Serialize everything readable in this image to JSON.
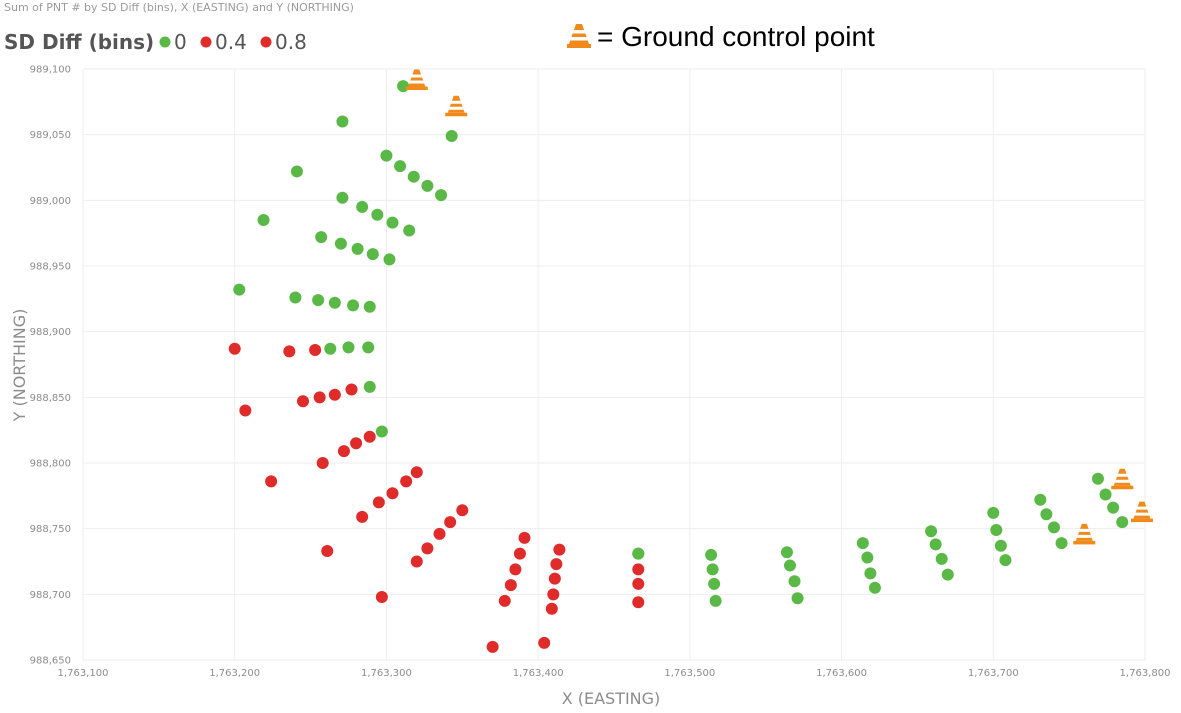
{
  "chart_data": {
    "type": "scatter",
    "title": "Sum of PNT # by SD Diff (bins), X (EASTING) and Y (NORTHING)",
    "xlabel": "X (EASTING)",
    "ylabel": "Y (NORTHING)",
    "xlim": [
      1763100,
      1763800
    ],
    "ylim": [
      988650,
      989100
    ],
    "xticks": [
      1763100,
      1763200,
      1763300,
      1763400,
      1763500,
      1763600,
      1763700,
      1763800
    ],
    "yticks": [
      988650,
      988700,
      988750,
      988800,
      988850,
      988900,
      988950,
      989000,
      989050,
      989100
    ],
    "xtick_labels": [
      "1,763,100",
      "1,763,200",
      "1,763,300",
      "1,763,400",
      "1,763,500",
      "1,763,600",
      "1,763,700",
      "1,763,800"
    ],
    "ytick_labels": [
      "988,650",
      "988,700",
      "988,750",
      "988,800",
      "988,850",
      "988,900",
      "988,950",
      "989,000",
      "989,050",
      "989,100"
    ],
    "grid": true,
    "legend": {
      "title": "SD Diff (bins)",
      "placement": "top-left",
      "entries": [
        {
          "label": "0",
          "color": "#5ab946"
        },
        {
          "label": "0.4",
          "color": "#e02b2b"
        },
        {
          "label": "0.8",
          "color": "#e02b2b"
        }
      ]
    },
    "annotation": "= Ground control point",
    "series": [
      {
        "name": "0",
        "color": "#5ab946",
        "points": [
          [
            1763311,
            989087
          ],
          [
            1763343,
            989049
          ],
          [
            1763271,
            989060
          ],
          [
            1763241,
            989022
          ],
          [
            1763300,
            989034
          ],
          [
            1763309,
            989026
          ],
          [
            1763318,
            989018
          ],
          [
            1763327,
            989011
          ],
          [
            1763336,
            989004
          ],
          [
            1763271,
            989002
          ],
          [
            1763284,
            988995
          ],
          [
            1763294,
            988989
          ],
          [
            1763304,
            988983
          ],
          [
            1763315,
            988977
          ],
          [
            1763219,
            988985
          ],
          [
            1763257,
            988972
          ],
          [
            1763270,
            988967
          ],
          [
            1763281,
            988963
          ],
          [
            1763291,
            988959
          ],
          [
            1763302,
            988955
          ],
          [
            1763203,
            988932
          ],
          [
            1763240,
            988926
          ],
          [
            1763255,
            988924
          ],
          [
            1763266,
            988922
          ],
          [
            1763278,
            988920
          ],
          [
            1763289,
            988919
          ],
          [
            1763263,
            988887
          ],
          [
            1763275,
            988888
          ],
          [
            1763288,
            988888
          ],
          [
            1763289,
            988858
          ],
          [
            1763297,
            988824
          ],
          [
            1763466,
            988731
          ],
          [
            1763466,
            988731
          ],
          [
            1763514,
            988730
          ],
          [
            1763515,
            988719
          ],
          [
            1763516,
            988708
          ],
          [
            1763517,
            988695
          ],
          [
            1763564,
            988732
          ],
          [
            1763566,
            988722
          ],
          [
            1763569,
            988710
          ],
          [
            1763571,
            988697
          ],
          [
            1763614,
            988739
          ],
          [
            1763617,
            988728
          ],
          [
            1763619,
            988716
          ],
          [
            1763622,
            988705
          ],
          [
            1763659,
            988748
          ],
          [
            1763662,
            988738
          ],
          [
            1763666,
            988727
          ],
          [
            1763670,
            988715
          ],
          [
            1763700,
            988762
          ],
          [
            1763702,
            988749
          ],
          [
            1763705,
            988737
          ],
          [
            1763708,
            988726
          ],
          [
            1763731,
            988772
          ],
          [
            1763735,
            988761
          ],
          [
            1763740,
            988751
          ],
          [
            1763745,
            988739
          ],
          [
            1763769,
            988788
          ],
          [
            1763774,
            988776
          ],
          [
            1763779,
            988766
          ],
          [
            1763785,
            988755
          ]
        ]
      },
      {
        "name": "0.4",
        "color": "#e02b2b",
        "points": [
          [
            1763200,
            988887
          ],
          [
            1763236,
            988885
          ],
          [
            1763253,
            988886
          ],
          [
            1763207,
            988840
          ],
          [
            1763245,
            988847
          ],
          [
            1763256,
            988850
          ],
          [
            1763266,
            988852
          ],
          [
            1763277,
            988856
          ],
          [
            1763258,
            988800
          ],
          [
            1763272,
            988809
          ],
          [
            1763280,
            988815
          ],
          [
            1763289,
            988820
          ],
          [
            1763224,
            988786
          ],
          [
            1763284,
            988759
          ],
          [
            1763295,
            988770
          ],
          [
            1763304,
            988777
          ],
          [
            1763313,
            988786
          ],
          [
            1763320,
            988793
          ],
          [
            1763261,
            988733
          ],
          [
            1763320,
            988725
          ],
          [
            1763327,
            988735
          ],
          [
            1763335,
            988746
          ],
          [
            1763342,
            988755
          ],
          [
            1763350,
            988764
          ],
          [
            1763297,
            988698
          ],
          [
            1763391,
            988743
          ],
          [
            1763388,
            988731
          ],
          [
            1763385,
            988719
          ],
          [
            1763382,
            988707
          ],
          [
            1763378,
            988695
          ],
          [
            1763414,
            988734
          ],
          [
            1763412,
            988723
          ],
          [
            1763411,
            988712
          ],
          [
            1763410,
            988700
          ],
          [
            1763409,
            988689
          ],
          [
            1763466,
            988719
          ],
          [
            1763466,
            988708
          ],
          [
            1763466,
            988694
          ],
          [
            1763404,
            988663
          ],
          [
            1763370,
            988660
          ]
        ]
      }
    ],
    "ground_control_points": [
      [
        1763320,
        989092
      ],
      [
        1763346,
        989072
      ],
      [
        1763785,
        988788
      ],
      [
        1763798,
        988763
      ],
      [
        1763760,
        988746
      ]
    ]
  }
}
